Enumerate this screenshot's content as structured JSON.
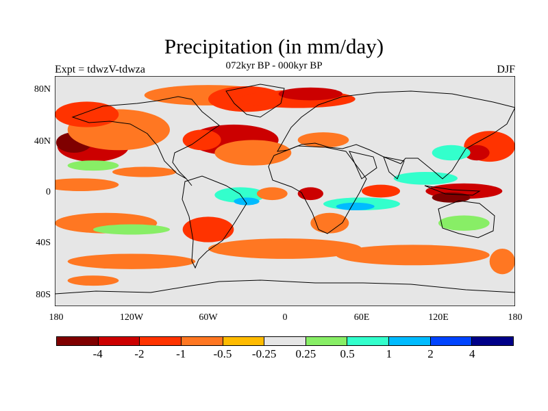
{
  "header": {
    "title": "Precipitation (in mm/day)",
    "subtitle": "072kyr BP - 000kyr BP",
    "left_label": "Expt = tdwzV-tdwza",
    "right_label": "DJF"
  },
  "map": {
    "lat_ticks": [
      "80N",
      "40N",
      "0",
      "40S",
      "80S"
    ],
    "lon_ticks": [
      "180",
      "120W",
      "60W",
      "0",
      "60E",
      "120E",
      "180"
    ],
    "background_color": "#e6e6e6"
  },
  "colorbar": {
    "colors": [
      "#7f0000",
      "#cc0000",
      "#ff3300",
      "#ff7722",
      "#ffbb00",
      "#e6e6e6",
      "#88ee66",
      "#33ffcc",
      "#00bbff",
      "#0044ff",
      "#000088"
    ],
    "labels": [
      "-4",
      "-2",
      "-1",
      "-0.5",
      "-0.25",
      "0.25",
      "0.5",
      "1",
      "2",
      "4"
    ]
  },
  "chart_data": {
    "type": "heatmap",
    "title": "Precipitation (in mm/day)",
    "subtitle": "072kyr BP - 000kyr BP",
    "left_label": "Expt = tdwzV-tdwza",
    "right_label": "DJF",
    "lat_range": [
      -90,
      90
    ],
    "lon_range": [
      -180,
      180
    ],
    "levels": [
      -4,
      -2,
      -1,
      -0.5,
      -0.25,
      0.25,
      0.5,
      1,
      2,
      4
    ],
    "regions": [
      {
        "lon": -150,
        "lat": 35,
        "rlon": 28,
        "rlat": 12,
        "level": -2
      },
      {
        "lon": -165,
        "lat": 38,
        "rlon": 14,
        "rlat": 8,
        "level": -4
      },
      {
        "lon": -130,
        "lat": 48,
        "rlon": 40,
        "rlat": 16,
        "level": -0.5
      },
      {
        "lon": -155,
        "lat": 60,
        "rlon": 25,
        "rlat": 10,
        "level": -1
      },
      {
        "lon": -60,
        "lat": 75,
        "rlon": 50,
        "rlat": 8,
        "level": -0.5
      },
      {
        "lon": -30,
        "lat": 72,
        "rlon": 30,
        "rlat": 10,
        "level": -1
      },
      {
        "lon": 10,
        "lat": 72,
        "rlon": 45,
        "rlat": 7,
        "level": -1
      },
      {
        "lon": 20,
        "lat": 76,
        "rlon": 25,
        "rlat": 5,
        "level": -2
      },
      {
        "lon": -40,
        "lat": 40,
        "rlon": 35,
        "rlat": 12,
        "level": -2
      },
      {
        "lon": -25,
        "lat": 30,
        "rlon": 30,
        "rlat": 10,
        "level": -0.5
      },
      {
        "lon": -65,
        "lat": 40,
        "rlon": 15,
        "rlat": 8,
        "level": -1
      },
      {
        "lon": 30,
        "lat": 40,
        "rlon": 20,
        "rlat": 6,
        "level": -0.5
      },
      {
        "lon": -160,
        "lat": 5,
        "rlon": 30,
        "rlat": 5,
        "level": -0.5
      },
      {
        "lon": -150,
        "lat": 20,
        "rlon": 20,
        "rlat": 4,
        "level": 0.5
      },
      {
        "lon": -110,
        "lat": 15,
        "rlon": 25,
        "rlat": 4,
        "level": -0.5
      },
      {
        "lon": -35,
        "lat": -3,
        "rlon": 20,
        "rlat": 6,
        "level": 1
      },
      {
        "lon": -30,
        "lat": -8,
        "rlon": 10,
        "rlat": 3,
        "level": 2
      },
      {
        "lon": -10,
        "lat": -2,
        "rlon": 12,
        "rlat": 5,
        "level": -0.5
      },
      {
        "lon": 20,
        "lat": -2,
        "rlon": 10,
        "rlat": 5,
        "level": -2
      },
      {
        "lon": 60,
        "lat": -10,
        "rlon": 30,
        "rlat": 5,
        "level": 1
      },
      {
        "lon": 55,
        "lat": -12,
        "rlon": 15,
        "rlat": 3,
        "level": 2
      },
      {
        "lon": 75,
        "lat": 0,
        "rlon": 15,
        "rlat": 5,
        "level": -1
      },
      {
        "lon": 35,
        "lat": -25,
        "rlon": 15,
        "rlat": 8,
        "level": -0.5
      },
      {
        "lon": 110,
        "lat": 10,
        "rlon": 25,
        "rlat": 5,
        "level": 1
      },
      {
        "lon": 140,
        "lat": 0,
        "rlon": 30,
        "rlat": 6,
        "level": -2
      },
      {
        "lon": 130,
        "lat": -5,
        "rlon": 15,
        "rlat": 4,
        "level": -4
      },
      {
        "lon": 160,
        "lat": 35,
        "rlon": 20,
        "rlat": 12,
        "level": -1
      },
      {
        "lon": 150,
        "lat": 30,
        "rlon": 10,
        "rlat": 6,
        "level": -2
      },
      {
        "lon": 130,
        "lat": 30,
        "rlon": 15,
        "rlat": 6,
        "level": 1
      },
      {
        "lon": 140,
        "lat": -25,
        "rlon": 20,
        "rlat": 6,
        "level": 0.5
      },
      {
        "lon": -140,
        "lat": -25,
        "rlon": 40,
        "rlat": 8,
        "level": -0.5
      },
      {
        "lon": -120,
        "lat": -30,
        "rlon": 30,
        "rlat": 4,
        "level": 0.5
      },
      {
        "lon": -60,
        "lat": -30,
        "rlon": 20,
        "rlat": 10,
        "level": -1
      },
      {
        "lon": 0,
        "lat": -45,
        "rlon": 60,
        "rlat": 8,
        "level": -0.5
      },
      {
        "lon": 100,
        "lat": -50,
        "rlon": 60,
        "rlat": 8,
        "level": -0.5
      },
      {
        "lon": -120,
        "lat": -55,
        "rlon": 50,
        "rlat": 6,
        "level": -0.5
      },
      {
        "lon": -150,
        "lat": -70,
        "rlon": 20,
        "rlat": 4,
        "level": -0.5
      },
      {
        "lon": 170,
        "lat": -55,
        "rlon": 10,
        "rlat": 10,
        "level": -0.5
      }
    ]
  }
}
